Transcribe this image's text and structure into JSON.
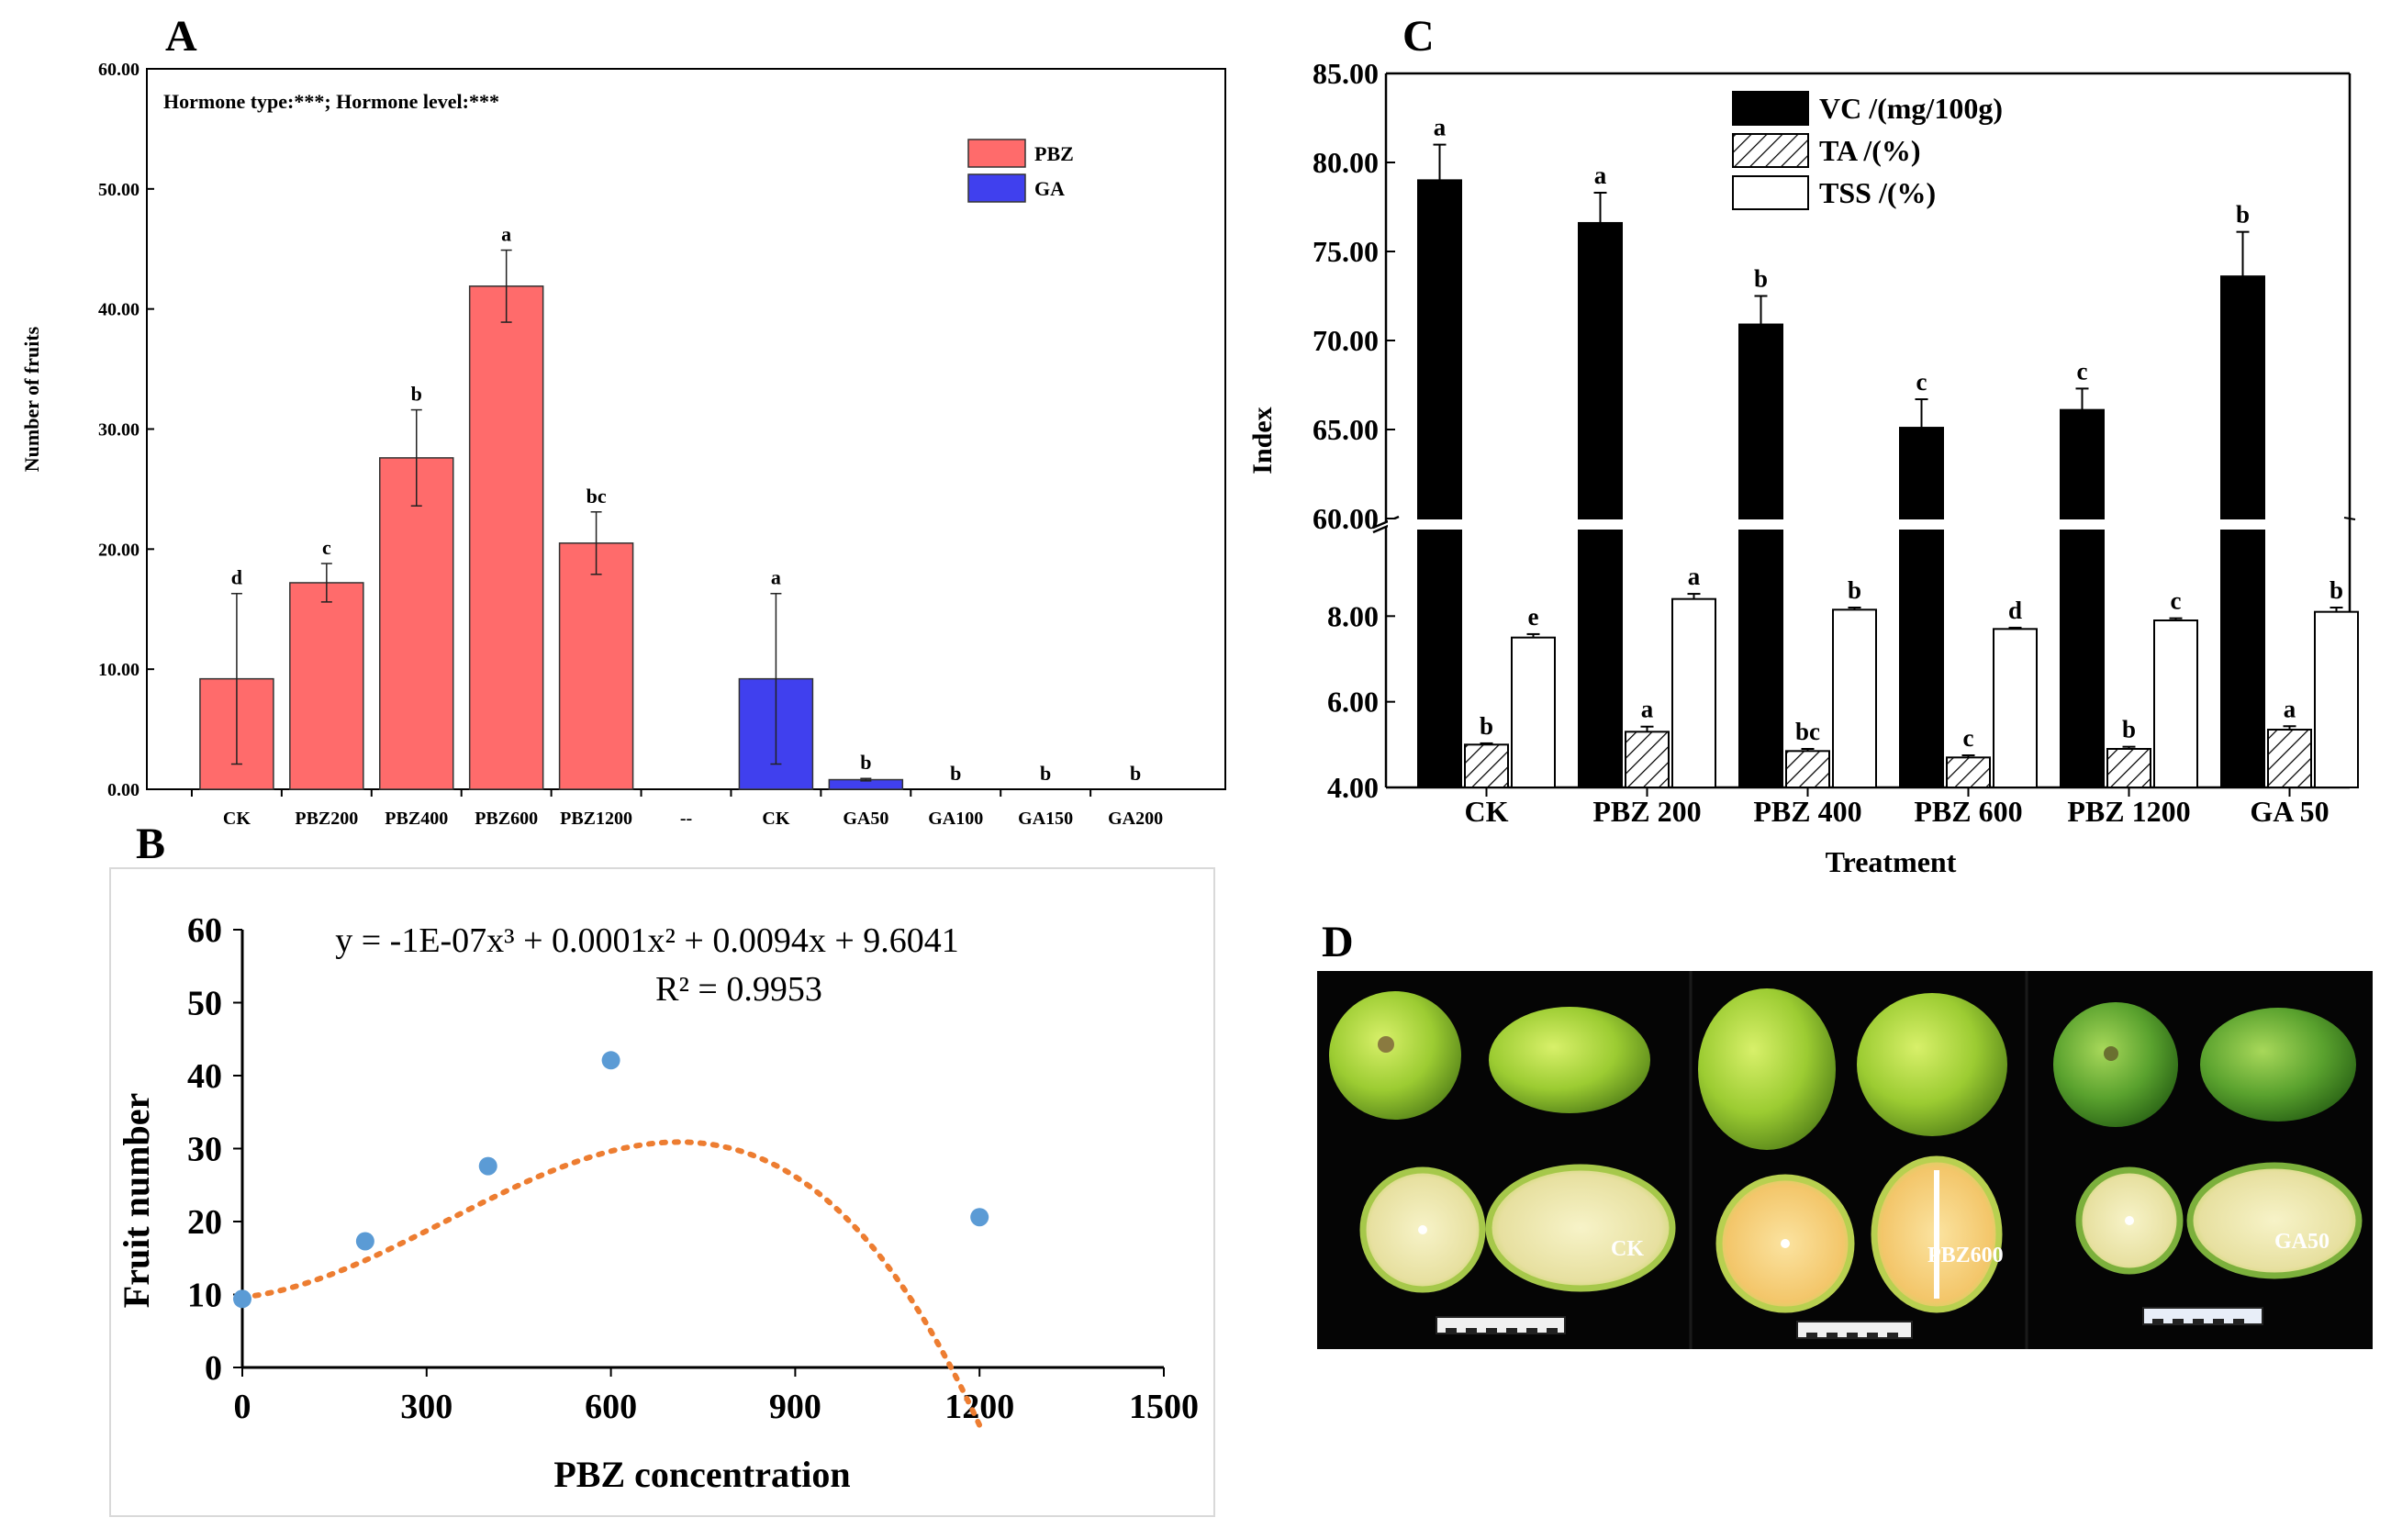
{
  "panel_labels": {
    "a": "A",
    "b": "B",
    "c": "C",
    "d": "D"
  },
  "chart_data": [
    {
      "id": "A",
      "type": "bar",
      "ylabel": "Number of fruits",
      "annotation": "Hormone type:***; Hormone level:***",
      "ylim": [
        0,
        60
      ],
      "yticks": [
        "0.00",
        "10.00",
        "20.00",
        "30.00",
        "40.00",
        "50.00",
        "60.00"
      ],
      "categories": [
        "CK",
        "PBZ200",
        "PBZ400",
        "PBZ600",
        "PBZ1200",
        "--",
        "CK",
        "GA50",
        "GA100",
        "GA150",
        "GA200"
      ],
      "values": [
        9.2,
        17.2,
        27.6,
        41.9,
        20.5,
        null,
        9.2,
        0.8,
        0,
        0,
        0
      ],
      "errors": [
        7.1,
        1.6,
        4.0,
        3.0,
        2.6,
        null,
        7.1,
        0.1,
        0,
        0,
        0
      ],
      "groups": [
        "PBZ",
        "PBZ",
        "PBZ",
        "PBZ",
        "PBZ",
        null,
        "GA",
        "GA",
        "GA",
        "GA",
        "GA"
      ],
      "letters": [
        "d",
        "c",
        "b",
        "a",
        "bc",
        "",
        "a",
        "b",
        "b",
        "b",
        "b"
      ],
      "legend": [
        {
          "name": "PBZ",
          "color": "#ff6b6b"
        },
        {
          "name": "GA",
          "color": "#4040ee"
        }
      ]
    },
    {
      "id": "B",
      "type": "scatter",
      "xlabel": "PBZ concentration",
      "ylabel": "Fruit number",
      "xlim": [
        0,
        1500
      ],
      "ylim": [
        0,
        60
      ],
      "xticks": [
        "0",
        "300",
        "600",
        "900",
        "1200",
        "1500"
      ],
      "yticks": [
        "0",
        "10",
        "20",
        "30",
        "40",
        "50",
        "60"
      ],
      "x": [
        0,
        200,
        400,
        600,
        1200
      ],
      "y": [
        9.4,
        17.3,
        27.6,
        42.1,
        20.6
      ],
      "trendline": {
        "a3": -1e-07,
        "a2": 0.0001,
        "a1": 0.0094,
        "a0": 9.6041
      },
      "equation": "y = -1E-07x³ + 0.0001x² + 0.0094x + 9.6041",
      "r2": "R² = 0.9953",
      "point_color": "#5b9bd5",
      "trend_color": "#ed7d31"
    },
    {
      "id": "C",
      "type": "bar",
      "xlabel": "Treatment",
      "ylabel": "Index",
      "axis_break": true,
      "upper_range": [
        60,
        85
      ],
      "lower_range": [
        4,
        10
      ],
      "upper_ticks": [
        "60.00",
        "65.00",
        "70.00",
        "75.00",
        "80.00",
        "85.00"
      ],
      "lower_ticks": [
        "4.00",
        "6.00",
        "8.00"
      ],
      "categories": [
        "CK",
        "PBZ 200",
        "PBZ 400",
        "PBZ 600",
        "PBZ 1200",
        "GA 50"
      ],
      "series": [
        {
          "name": "VC /(mg/100g)",
          "fill": "black",
          "values": [
            79.0,
            76.6,
            70.9,
            65.1,
            66.1,
            73.6
          ],
          "errors": [
            2.0,
            1.7,
            1.6,
            1.6,
            1.2,
            2.5
          ],
          "letters": [
            "a",
            "a",
            "b",
            "c",
            "c",
            "b"
          ]
        },
        {
          "name": "TA /(%)",
          "fill": "hatch",
          "values": [
            5.0,
            5.3,
            4.85,
            4.7,
            4.9,
            5.35
          ],
          "errors": [
            0.03,
            0.12,
            0.05,
            0.05,
            0.05,
            0.08
          ],
          "letters": [
            "b",
            "a",
            "bc",
            "c",
            "b",
            "a"
          ]
        },
        {
          "name": "TSS /(%)",
          "fill": "white",
          "values": [
            7.5,
            8.4,
            8.15,
            7.7,
            7.9,
            8.1
          ],
          "errors": [
            0.08,
            0.12,
            0.05,
            0.03,
            0.05,
            0.1
          ],
          "letters": [
            "e",
            "a",
            "b",
            "d",
            "c",
            "b"
          ]
        }
      ]
    }
  ],
  "photos": {
    "labels": [
      "CK",
      "PBZ600",
      "GA50"
    ]
  }
}
